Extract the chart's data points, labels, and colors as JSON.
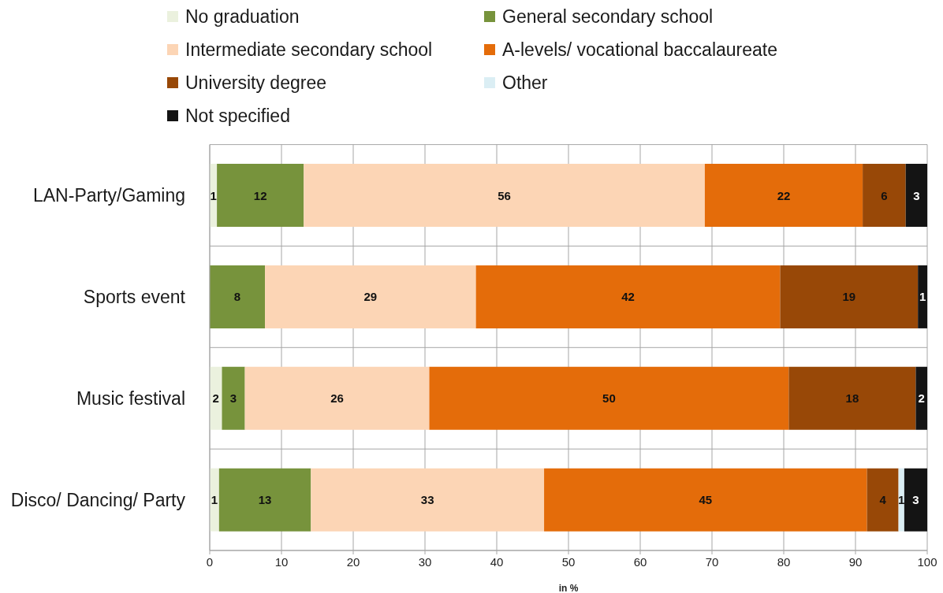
{
  "chart_data": {
    "type": "bar",
    "orientation": "horizontal",
    "stacked": true,
    "xlabel": "in %",
    "categories": [
      "LAN-Party/Gaming",
      "Sports event",
      "Music festival",
      "Disco/ Dancing/ Party"
    ],
    "series": [
      {
        "name": "No graduation",
        "color": "#ebf1de",
        "values": [
          1.0,
          null,
          1.7,
          1.3
        ],
        "value_labels": [
          "1",
          null,
          "2",
          "1"
        ]
      },
      {
        "name": "General secondary school",
        "color": "#77933c",
        "values": [
          12.1,
          7.7,
          3.2,
          12.8
        ],
        "value_labels": [
          "12",
          "8",
          "3",
          "13"
        ]
      },
      {
        "name": "Intermediate secondary school",
        "color": "#fcd5b5",
        "values": [
          55.9,
          29.4,
          25.7,
          32.5
        ],
        "value_labels": [
          "56",
          "29",
          "26",
          "33"
        ]
      },
      {
        "name": "A-levels/ vocational baccalaureate",
        "color": "#e46c0a",
        "values": [
          22.0,
          42.4,
          50.1,
          45.0
        ],
        "value_labels": [
          "22",
          "42",
          "50",
          "45"
        ]
      },
      {
        "name": "University degree",
        "color": "#984807",
        "values": [
          6.0,
          19.2,
          17.7,
          4.4
        ],
        "value_labels": [
          "6",
          "19",
          "18",
          "4"
        ]
      },
      {
        "name": "Other",
        "color": "#dbeef4",
        "values": [
          null,
          null,
          null,
          0.8
        ],
        "value_labels": [
          null,
          null,
          null,
          "1"
        ]
      },
      {
        "name": "Not specified",
        "color": "#141414",
        "values": [
          3.0,
          1.3,
          1.6,
          3.2
        ],
        "value_labels": [
          "3",
          "1",
          "2",
          "3"
        ]
      }
    ],
    "xlim": [
      0,
      100
    ],
    "xticks": [
      0,
      10,
      20,
      30,
      40,
      50,
      60,
      70,
      80,
      90,
      100
    ],
    "grid": true,
    "legend": "top"
  }
}
